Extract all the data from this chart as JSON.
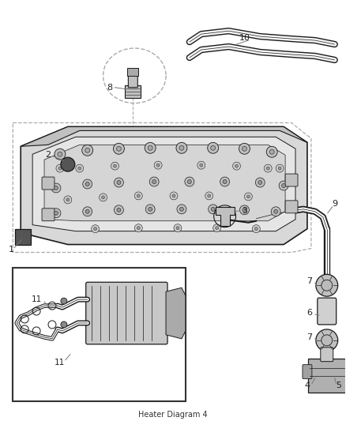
{
  "bg_color": "#ffffff",
  "lc": "#1a1a1a",
  "gray_light": "#e8e8e8",
  "gray_mid": "#c0c0c0",
  "gray_dark": "#888888",
  "gray_darker": "#555555",
  "label_color": "#222222",
  "leader_color": "#777777",
  "dashed_color": "#aaaaaa",
  "figsize": [
    4.38,
    5.33
  ],
  "dpi": 100,
  "xlim": [
    0,
    438
  ],
  "ylim": [
    0,
    533
  ]
}
